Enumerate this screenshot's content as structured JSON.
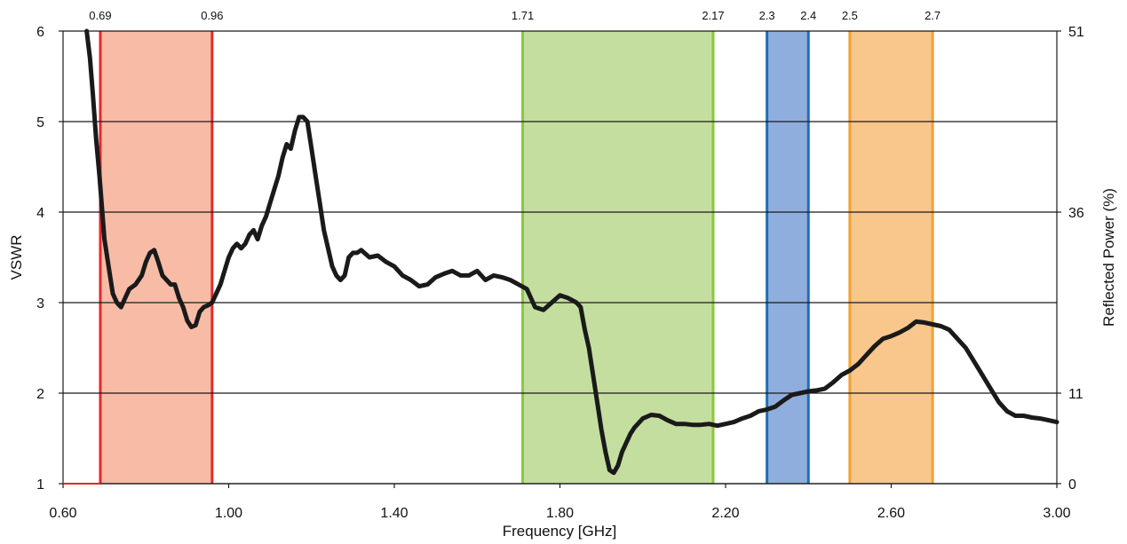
{
  "chart_data": {
    "type": "line",
    "title": "",
    "xlabel": "Frequency [GHz]",
    "ylabel": "VSWR",
    "y2label": "Reflected Power (%)",
    "xlim": [
      0.6,
      3.0
    ],
    "ylim": [
      1,
      6
    ],
    "x_ticks": [
      "0.60",
      "1.00",
      "1.40",
      "1.80",
      "2.20",
      "2.60",
      "3.00"
    ],
    "y_ticks": [
      "1",
      "2",
      "3",
      "4",
      "5",
      "6"
    ],
    "y2_ticks": [
      {
        "label": "0",
        "at_vswr": 1
      },
      {
        "label": "11",
        "at_vswr": 2
      },
      {
        "label": "36",
        "at_vswr": 4
      },
      {
        "label": "51",
        "at_vswr": 6
      }
    ],
    "grid": "horizontal",
    "bands": [
      {
        "start": 0.69,
        "end": 0.96,
        "start_label": "0.69",
        "end_label": "0.96",
        "fill": "#f8bca6",
        "edge": "#e5282c"
      },
      {
        "start": 1.71,
        "end": 2.17,
        "start_label": "1.71",
        "end_label": "2.17",
        "fill": "#c4dea0",
        "edge": "#8cc63f"
      },
      {
        "start": 2.3,
        "end": 2.4,
        "start_label": "2.3",
        "end_label": "2.4",
        "fill": "#8faedd",
        "edge": "#1f6fb2"
      },
      {
        "start": 2.5,
        "end": 2.7,
        "start_label": "2.5",
        "end_label": "2.7",
        "fill": "#f9c68c",
        "edge": "#f0a035"
      }
    ],
    "series": [
      {
        "color": "#1a1a1a",
        "x": [
          0.657,
          0.665,
          0.672,
          0.68,
          0.688,
          0.7,
          0.71,
          0.72,
          0.73,
          0.74,
          0.75,
          0.76,
          0.775,
          0.79,
          0.8,
          0.81,
          0.82,
          0.83,
          0.84,
          0.85,
          0.86,
          0.87,
          0.88,
          0.89,
          0.9,
          0.91,
          0.92,
          0.93,
          0.94,
          0.95,
          0.96,
          0.97,
          0.98,
          0.99,
          1.0,
          1.01,
          1.02,
          1.03,
          1.04,
          1.05,
          1.06,
          1.07,
          1.08,
          1.09,
          1.1,
          1.11,
          1.12,
          1.13,
          1.14,
          1.15,
          1.16,
          1.17,
          1.18,
          1.19,
          1.2,
          1.21,
          1.22,
          1.23,
          1.24,
          1.25,
          1.26,
          1.27,
          1.28,
          1.29,
          1.3,
          1.31,
          1.32,
          1.34,
          1.36,
          1.38,
          1.4,
          1.42,
          1.44,
          1.46,
          1.48,
          1.5,
          1.52,
          1.54,
          1.56,
          1.58,
          1.6,
          1.62,
          1.64,
          1.66,
          1.68,
          1.7,
          1.72,
          1.74,
          1.76,
          1.78,
          1.8,
          1.82,
          1.84,
          1.85,
          1.86,
          1.87,
          1.88,
          1.89,
          1.9,
          1.91,
          1.92,
          1.93,
          1.94,
          1.95,
          1.96,
          1.97,
          1.98,
          2.0,
          2.02,
          2.04,
          2.06,
          2.08,
          2.1,
          2.12,
          2.14,
          2.16,
          2.18,
          2.2,
          2.22,
          2.24,
          2.26,
          2.28,
          2.3,
          2.32,
          2.34,
          2.36,
          2.38,
          2.4,
          2.42,
          2.44,
          2.46,
          2.48,
          2.5,
          2.52,
          2.54,
          2.56,
          2.58,
          2.6,
          2.62,
          2.64,
          2.66,
          2.68,
          2.7,
          2.72,
          2.74,
          2.76,
          2.78,
          2.8,
          2.82,
          2.84,
          2.86,
          2.88,
          2.9,
          2.92,
          2.94,
          2.96,
          2.98,
          3.0
        ],
        "y": [
          6.0,
          5.7,
          5.3,
          4.8,
          4.4,
          3.7,
          3.4,
          3.1,
          3.0,
          2.95,
          3.05,
          3.15,
          3.2,
          3.3,
          3.45,
          3.55,
          3.58,
          3.45,
          3.3,
          3.25,
          3.2,
          3.2,
          3.05,
          2.95,
          2.8,
          2.73,
          2.75,
          2.9,
          2.95,
          2.97,
          3.0,
          3.1,
          3.2,
          3.35,
          3.5,
          3.6,
          3.65,
          3.6,
          3.65,
          3.75,
          3.8,
          3.7,
          3.85,
          3.95,
          4.1,
          4.25,
          4.4,
          4.6,
          4.75,
          4.7,
          4.9,
          5.05,
          5.05,
          5.0,
          4.7,
          4.4,
          4.1,
          3.8,
          3.6,
          3.4,
          3.3,
          3.25,
          3.3,
          3.5,
          3.55,
          3.55,
          3.58,
          3.5,
          3.52,
          3.45,
          3.4,
          3.3,
          3.25,
          3.18,
          3.2,
          3.28,
          3.32,
          3.35,
          3.3,
          3.3,
          3.35,
          3.25,
          3.3,
          3.28,
          3.25,
          3.2,
          3.15,
          2.95,
          2.92,
          3.0,
          3.08,
          3.05,
          3.0,
          2.95,
          2.7,
          2.5,
          2.2,
          1.9,
          1.6,
          1.35,
          1.15,
          1.12,
          1.2,
          1.35,
          1.45,
          1.55,
          1.62,
          1.72,
          1.76,
          1.75,
          1.7,
          1.66,
          1.66,
          1.65,
          1.65,
          1.66,
          1.64,
          1.66,
          1.68,
          1.72,
          1.75,
          1.8,
          1.82,
          1.85,
          1.92,
          1.98,
          2.0,
          2.02,
          2.03,
          2.05,
          2.12,
          2.2,
          2.25,
          2.32,
          2.42,
          2.52,
          2.6,
          2.63,
          2.67,
          2.72,
          2.79,
          2.78,
          2.76,
          2.74,
          2.7,
          2.6,
          2.5,
          2.35,
          2.2,
          2.05,
          1.9,
          1.8,
          1.75,
          1.75,
          1.73,
          1.72,
          1.7,
          1.68
        ]
      }
    ]
  }
}
